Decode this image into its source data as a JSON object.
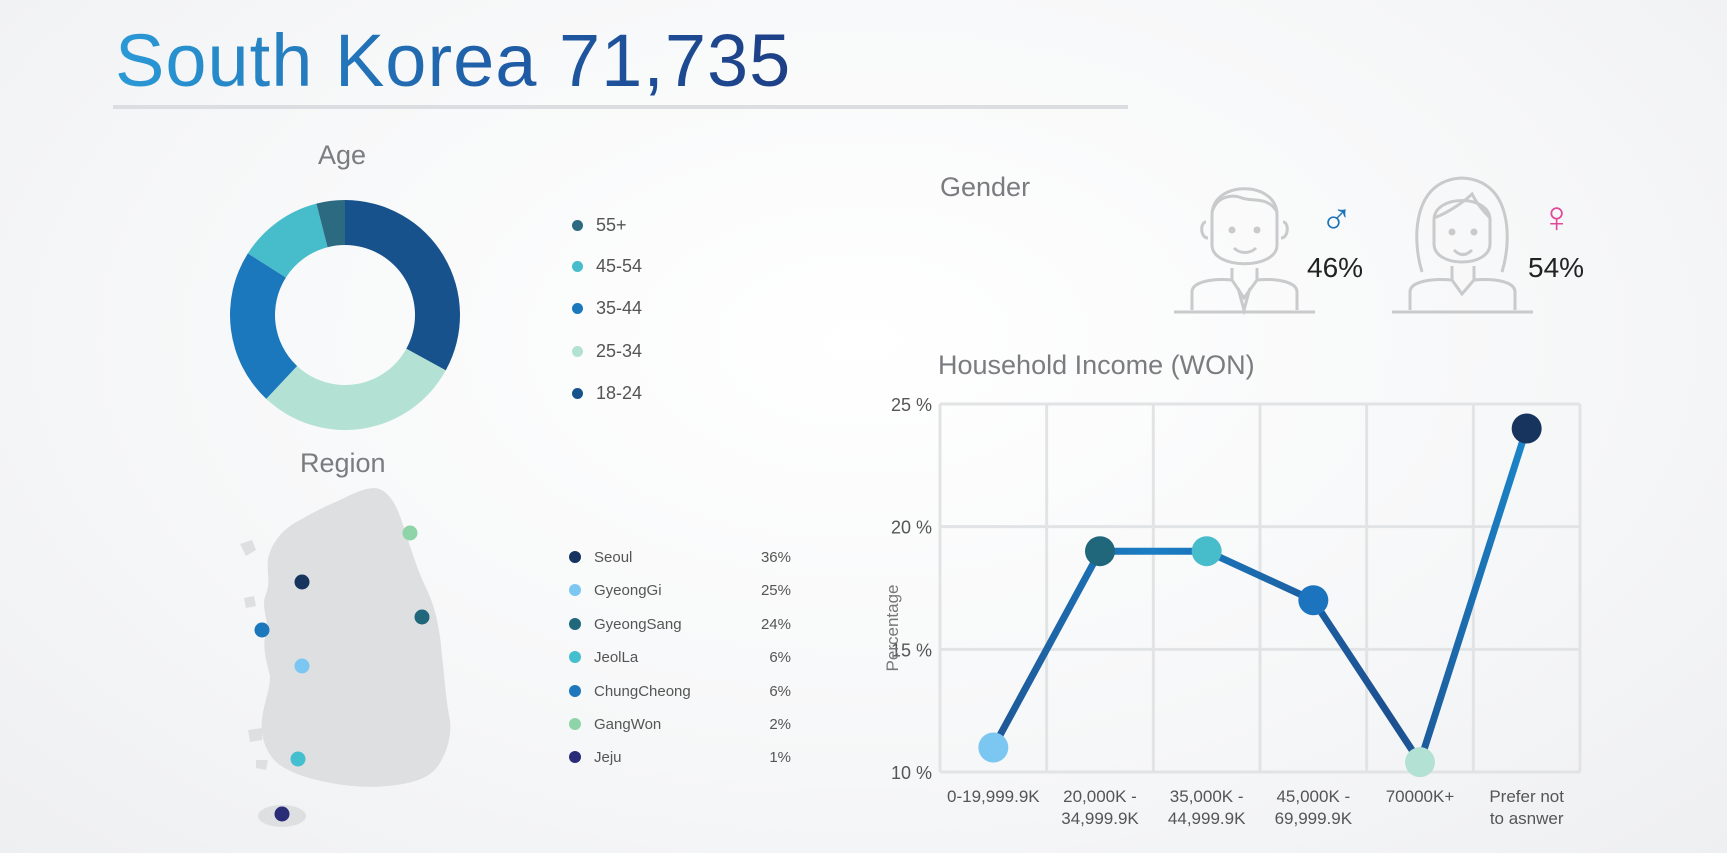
{
  "header": {
    "title": "South Korea 71,735"
  },
  "age": {
    "title": "Age",
    "legend": [
      {
        "label": "55+",
        "color": "#2b6a80"
      },
      {
        "label": "45-54",
        "color": "#47bccb"
      },
      {
        "label": "35-44",
        "color": "#1b78bd"
      },
      {
        "label": "25-34",
        "color": "#b3e1d4"
      },
      {
        "label": "18-24",
        "color": "#18528c"
      }
    ]
  },
  "region": {
    "title": "Region",
    "rows": [
      {
        "name": "Seoul",
        "pct": "36%",
        "color": "#17345f"
      },
      {
        "name": "GyeongGi",
        "pct": "25%",
        "color": "#7cc7f2"
      },
      {
        "name": "GyeongSang",
        "pct": "24%",
        "color": "#20677c"
      },
      {
        "name": "JeolLa",
        "pct": "6%",
        "color": "#43bfcf"
      },
      {
        "name": "ChungCheong",
        "pct": "6%",
        "color": "#1d77bd"
      },
      {
        "name": "GangWon",
        "pct": "2%",
        "color": "#8fd4a8"
      },
      {
        "name": "Jeju",
        "pct": "1%",
        "color": "#2a2c78"
      }
    ]
  },
  "gender": {
    "title": "Gender",
    "male": {
      "pct": "46%",
      "symbol": "♂",
      "color": "#1b74b8",
      "icon": "male-avatar-icon"
    },
    "female": {
      "pct": "54%",
      "symbol": "♀",
      "color": "#e0499a",
      "icon": "female-avatar-icon"
    }
  },
  "chart_data": [
    {
      "type": "pie",
      "title": "Age",
      "categories": [
        "18-24",
        "25-34",
        "35-44",
        "45-54",
        "55+"
      ],
      "values": [
        33,
        29,
        22,
        12,
        4
      ],
      "colors": [
        "#18528c",
        "#b3e1d4",
        "#1b78bd",
        "#47bccb",
        "#2b6a80"
      ],
      "donut": true,
      "legend": "right"
    },
    {
      "type": "line",
      "title": "Household Income (WON)",
      "xlabel": "",
      "ylabel": "Percentage",
      "categories": [
        [
          "0-19,999.9K"
        ],
        [
          "20,000K -",
          "34,999.9K"
        ],
        [
          "35,000K -",
          "44,999.9K"
        ],
        [
          "45,000K -",
          "69,999.9K"
        ],
        [
          "70000K+"
        ],
        [
          "Prefer not",
          "to asnwer"
        ]
      ],
      "values": [
        11,
        19,
        19,
        17,
        10.4,
        24
      ],
      "point_colors": [
        "#7cc7f2",
        "#20677c",
        "#47bccb",
        "#1b74bd",
        "#b3e1d4",
        "#17345f"
      ],
      "yticks": [
        10,
        15,
        20,
        25
      ],
      "ytick_labels": [
        "10 %",
        "15 %",
        "20 %",
        "25 %"
      ],
      "ylim": [
        10,
        25
      ],
      "grid": true
    }
  ]
}
